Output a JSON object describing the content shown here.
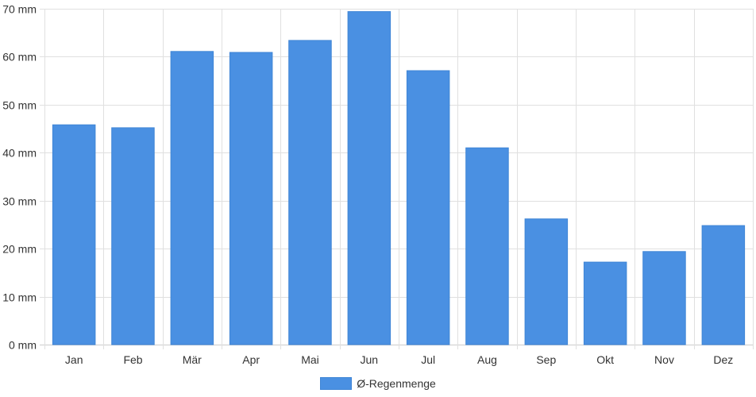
{
  "chart_data": {
    "type": "bar",
    "categories": [
      "Jan",
      "Feb",
      "Mär",
      "Apr",
      "Mai",
      "Jun",
      "Jul",
      "Aug",
      "Sep",
      "Okt",
      "Nov",
      "Dez"
    ],
    "series": [
      {
        "name": "Ø-Regenmenge",
        "values": [
          45.8,
          45.2,
          61.1,
          60.9,
          63.4,
          69.4,
          57.1,
          41.0,
          26.2,
          17.2,
          19.4,
          24.8
        ],
        "color": "#4a90e2"
      }
    ],
    "y_unit": "mm",
    "ylim": [
      0,
      70
    ],
    "yticks": [
      0,
      10,
      20,
      30,
      40,
      50,
      60,
      70
    ],
    "grid": true,
    "legend_position": "bottom"
  },
  "colors": {
    "bar": "#4a90e2",
    "grid": "#e0e0e0",
    "axis": "#cccccc",
    "text": "#333333"
  }
}
